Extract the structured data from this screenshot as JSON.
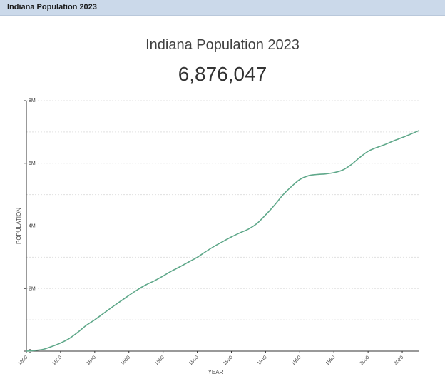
{
  "topbar": {
    "title": "Indiana Population 2023"
  },
  "header": {
    "title": "Indiana Population 2023",
    "value": "6,876,047"
  },
  "colors": {
    "topbar_bg": "#cbd9ea",
    "line": "#5fa88a",
    "grid": "#e0e0e0",
    "axis": "#333333"
  },
  "chart_data": {
    "type": "line",
    "title": "Indiana Population 2023",
    "xlabel": "YEAR",
    "ylabel": "POPULATION",
    "xlim": [
      1800,
      2030
    ],
    "ylim": [
      0,
      8000000
    ],
    "grid": true,
    "x_ticks": [
      1800,
      1820,
      1840,
      1860,
      1880,
      1900,
      1920,
      1940,
      1960,
      1980,
      2000,
      2020
    ],
    "x_tick_labels": [
      "1800",
      "1820",
      "1840",
      "1860",
      "1880",
      "1900",
      "1920",
      "1940",
      "1960",
      "1980",
      "2000",
      "2020"
    ],
    "y_ticks": [
      0,
      2000000,
      4000000,
      6000000,
      8000000
    ],
    "y_tick_labels": [
      "0",
      "2M",
      "4M",
      "6M",
      "8M"
    ],
    "x": [
      1800,
      1805,
      1810,
      1815,
      1820,
      1825,
      1830,
      1835,
      1840,
      1845,
      1850,
      1855,
      1860,
      1865,
      1870,
      1875,
      1880,
      1885,
      1890,
      1895,
      1900,
      1905,
      1910,
      1915,
      1920,
      1925,
      1930,
      1935,
      1940,
      1945,
      1950,
      1955,
      1960,
      1965,
      1970,
      1975,
      1980,
      1985,
      1990,
      1995,
      2000,
      2005,
      2010,
      2015,
      2020,
      2025,
      2030
    ],
    "values": [
      0,
      20000,
      60000,
      150000,
      260000,
      400000,
      600000,
      820000,
      1000000,
      1200000,
      1400000,
      1590000,
      1780000,
      1960000,
      2120000,
      2250000,
      2400000,
      2560000,
      2700000,
      2850000,
      3000000,
      3180000,
      3350000,
      3500000,
      3650000,
      3780000,
      3900000,
      4080000,
      4350000,
      4650000,
      4980000,
      5250000,
      5480000,
      5600000,
      5640000,
      5660000,
      5700000,
      5780000,
      5950000,
      6180000,
      6380000,
      6500000,
      6600000,
      6720000,
      6820000,
      6930000,
      7050000
    ]
  }
}
